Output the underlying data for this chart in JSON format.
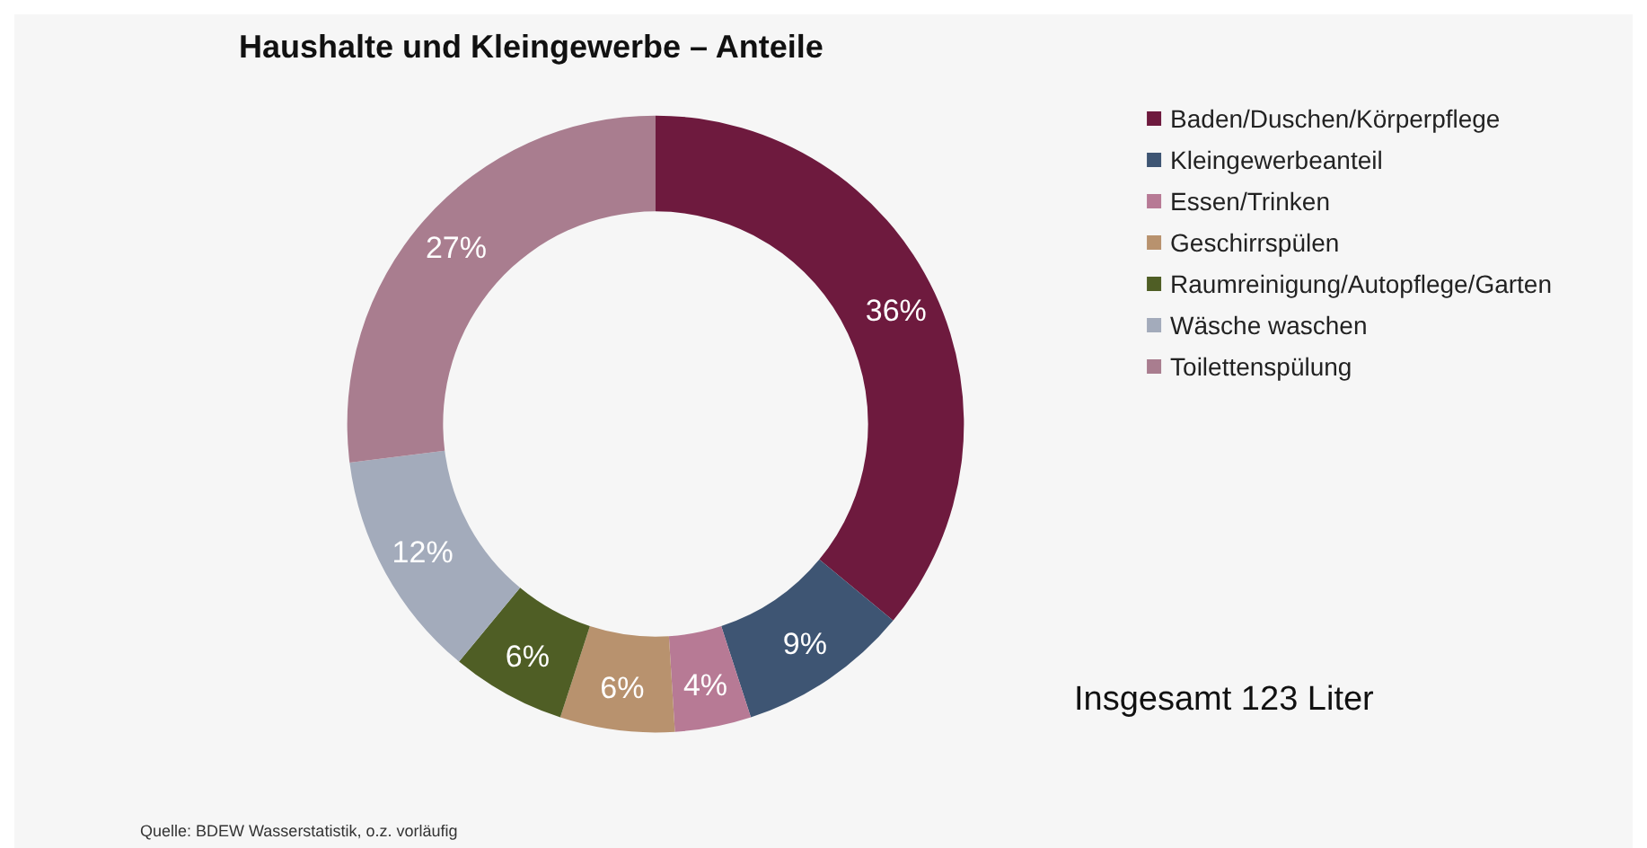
{
  "chart_data": {
    "type": "donut",
    "title": "Haushalte und Kleingewerbe – Anteile",
    "categories": [
      "Baden/Duschen/Körperpflege",
      "Kleingewerbeanteil",
      "Essen/Trinken",
      "Geschirrspülen",
      "Raumreinigung/Autopflege/Garten",
      "Wäsche waschen",
      "Toilettenspülung"
    ],
    "values": [
      36,
      9,
      4,
      6,
      6,
      12,
      27
    ],
    "colors": [
      "#6e1a3e",
      "#3e5573",
      "#b77a95",
      "#b8926e",
      "#4f5e25",
      "#a3abbb",
      "#a97d8f"
    ],
    "value_labels": [
      "36%",
      "9%",
      "4%",
      "6%",
      "6%",
      "12%",
      "27%"
    ],
    "legend": "top right",
    "annotations": [
      "Insgesamt 123 Liter",
      "Quelle: BDEW Wasserstatistik, o.z. vorläufig"
    ]
  }
}
